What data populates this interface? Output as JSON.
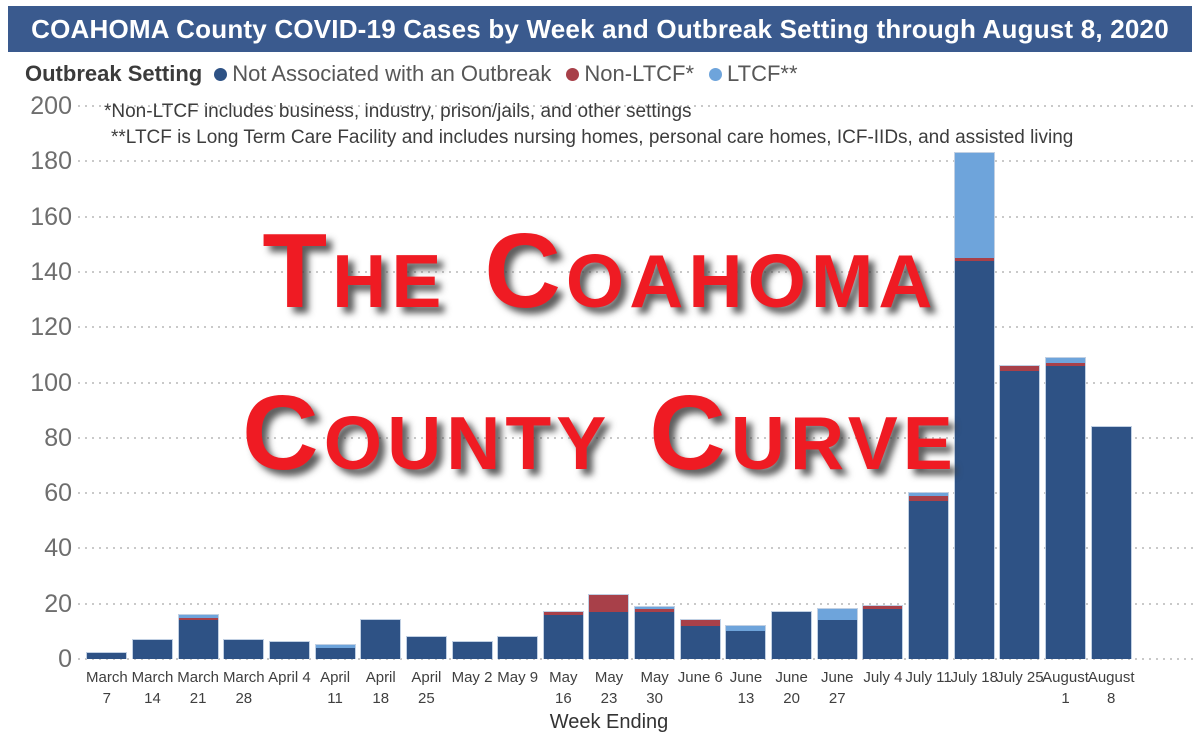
{
  "title_bar": {
    "text": "COAHOMA County COVID-19 Cases by Week and Outbreak Setting through August 8, 2020",
    "bg_color": "#3A5A8E",
    "text_color": "#FFFFFF"
  },
  "legend": {
    "title": "Outbreak Setting",
    "items": [
      {
        "label": "Not Associated with an Outbreak",
        "color": "#2E5285"
      },
      {
        "label": "Non-LTCF*",
        "color": "#A84049"
      },
      {
        "label": "LTCF**",
        "color": "#6EA4DB"
      }
    ]
  },
  "footnotes": [
    "*Non-LTCF includes business, industry, prison/jails, and other settings",
    "**LTCF is Long Term Care Facility and includes nursing homes, personal care homes, ICF-IIDs, and assisted living"
  ],
  "overlay": {
    "lines": [
      "The Coahoma",
      "County Curve"
    ],
    "color": "#EF1B23"
  },
  "chart_data": {
    "type": "bar",
    "stacked": true,
    "title": "COAHOMA County COVID-19 Cases by Week and Outbreak Setting through August 8, 2020",
    "xlabel": "Week Ending",
    "ylabel": "",
    "ylim": [
      0,
      200
    ],
    "yticks": [
      0,
      20,
      40,
      60,
      80,
      100,
      120,
      140,
      160,
      180,
      200
    ],
    "grid": "dotted-horizontal",
    "legend_position": "top",
    "categories": [
      "March 7",
      "March 14",
      "March 21",
      "March 28",
      "April 4",
      "April 11",
      "April 18",
      "April 25",
      "May 2",
      "May 9",
      "May 16",
      "May 23",
      "May 30",
      "June 6",
      "June 13",
      "June 20",
      "June 27",
      "July 4",
      "July 11",
      "July 18",
      "July 25",
      "August 1",
      "August 8"
    ],
    "category_label_lines": [
      [
        "March",
        "7"
      ],
      [
        "March",
        "14"
      ],
      [
        "March",
        "21"
      ],
      [
        "March",
        "28"
      ],
      [
        "April 4"
      ],
      [
        "April",
        "11"
      ],
      [
        "April",
        "18"
      ],
      [
        "April",
        "25"
      ],
      [
        "May 2"
      ],
      [
        "May 9"
      ],
      [
        "May",
        "16"
      ],
      [
        "May",
        "23"
      ],
      [
        "May",
        "30"
      ],
      [
        "June 6"
      ],
      [
        "June",
        "13"
      ],
      [
        "June",
        "20"
      ],
      [
        "June",
        "27"
      ],
      [
        "July 4"
      ],
      [
        "July 11"
      ],
      [
        "July 18"
      ],
      [
        "July 25"
      ],
      [
        "August",
        "1"
      ],
      [
        "August",
        "8"
      ]
    ],
    "series": [
      {
        "name": "Not Associated with an Outbreak",
        "color": "#2E5285",
        "values": [
          2,
          7,
          14,
          7,
          6,
          4,
          14,
          8,
          6,
          8,
          16,
          17,
          17,
          12,
          10,
          17,
          14,
          18,
          57,
          144,
          104,
          106,
          84
        ]
      },
      {
        "name": "Non-LTCF*",
        "color": "#A84049",
        "values": [
          0,
          0,
          1,
          0,
          0,
          0,
          0,
          0,
          0,
          0,
          1,
          6,
          1,
          2,
          0,
          0,
          0,
          1,
          2,
          1,
          2,
          1,
          0
        ]
      },
      {
        "name": "LTCF**",
        "color": "#6EA4DB",
        "values": [
          0,
          0,
          1,
          0,
          0,
          1,
          0,
          0,
          0,
          0,
          0,
          0,
          1,
          0,
          2,
          0,
          4,
          0,
          1,
          38,
          0,
          2,
          0
        ]
      }
    ],
    "totals": [
      2,
      7,
      16,
      7,
      6,
      5,
      14,
      8,
      6,
      8,
      17,
      23,
      19,
      14,
      12,
      17,
      18,
      19,
      60,
      183,
      106,
      109,
      84
    ]
  }
}
